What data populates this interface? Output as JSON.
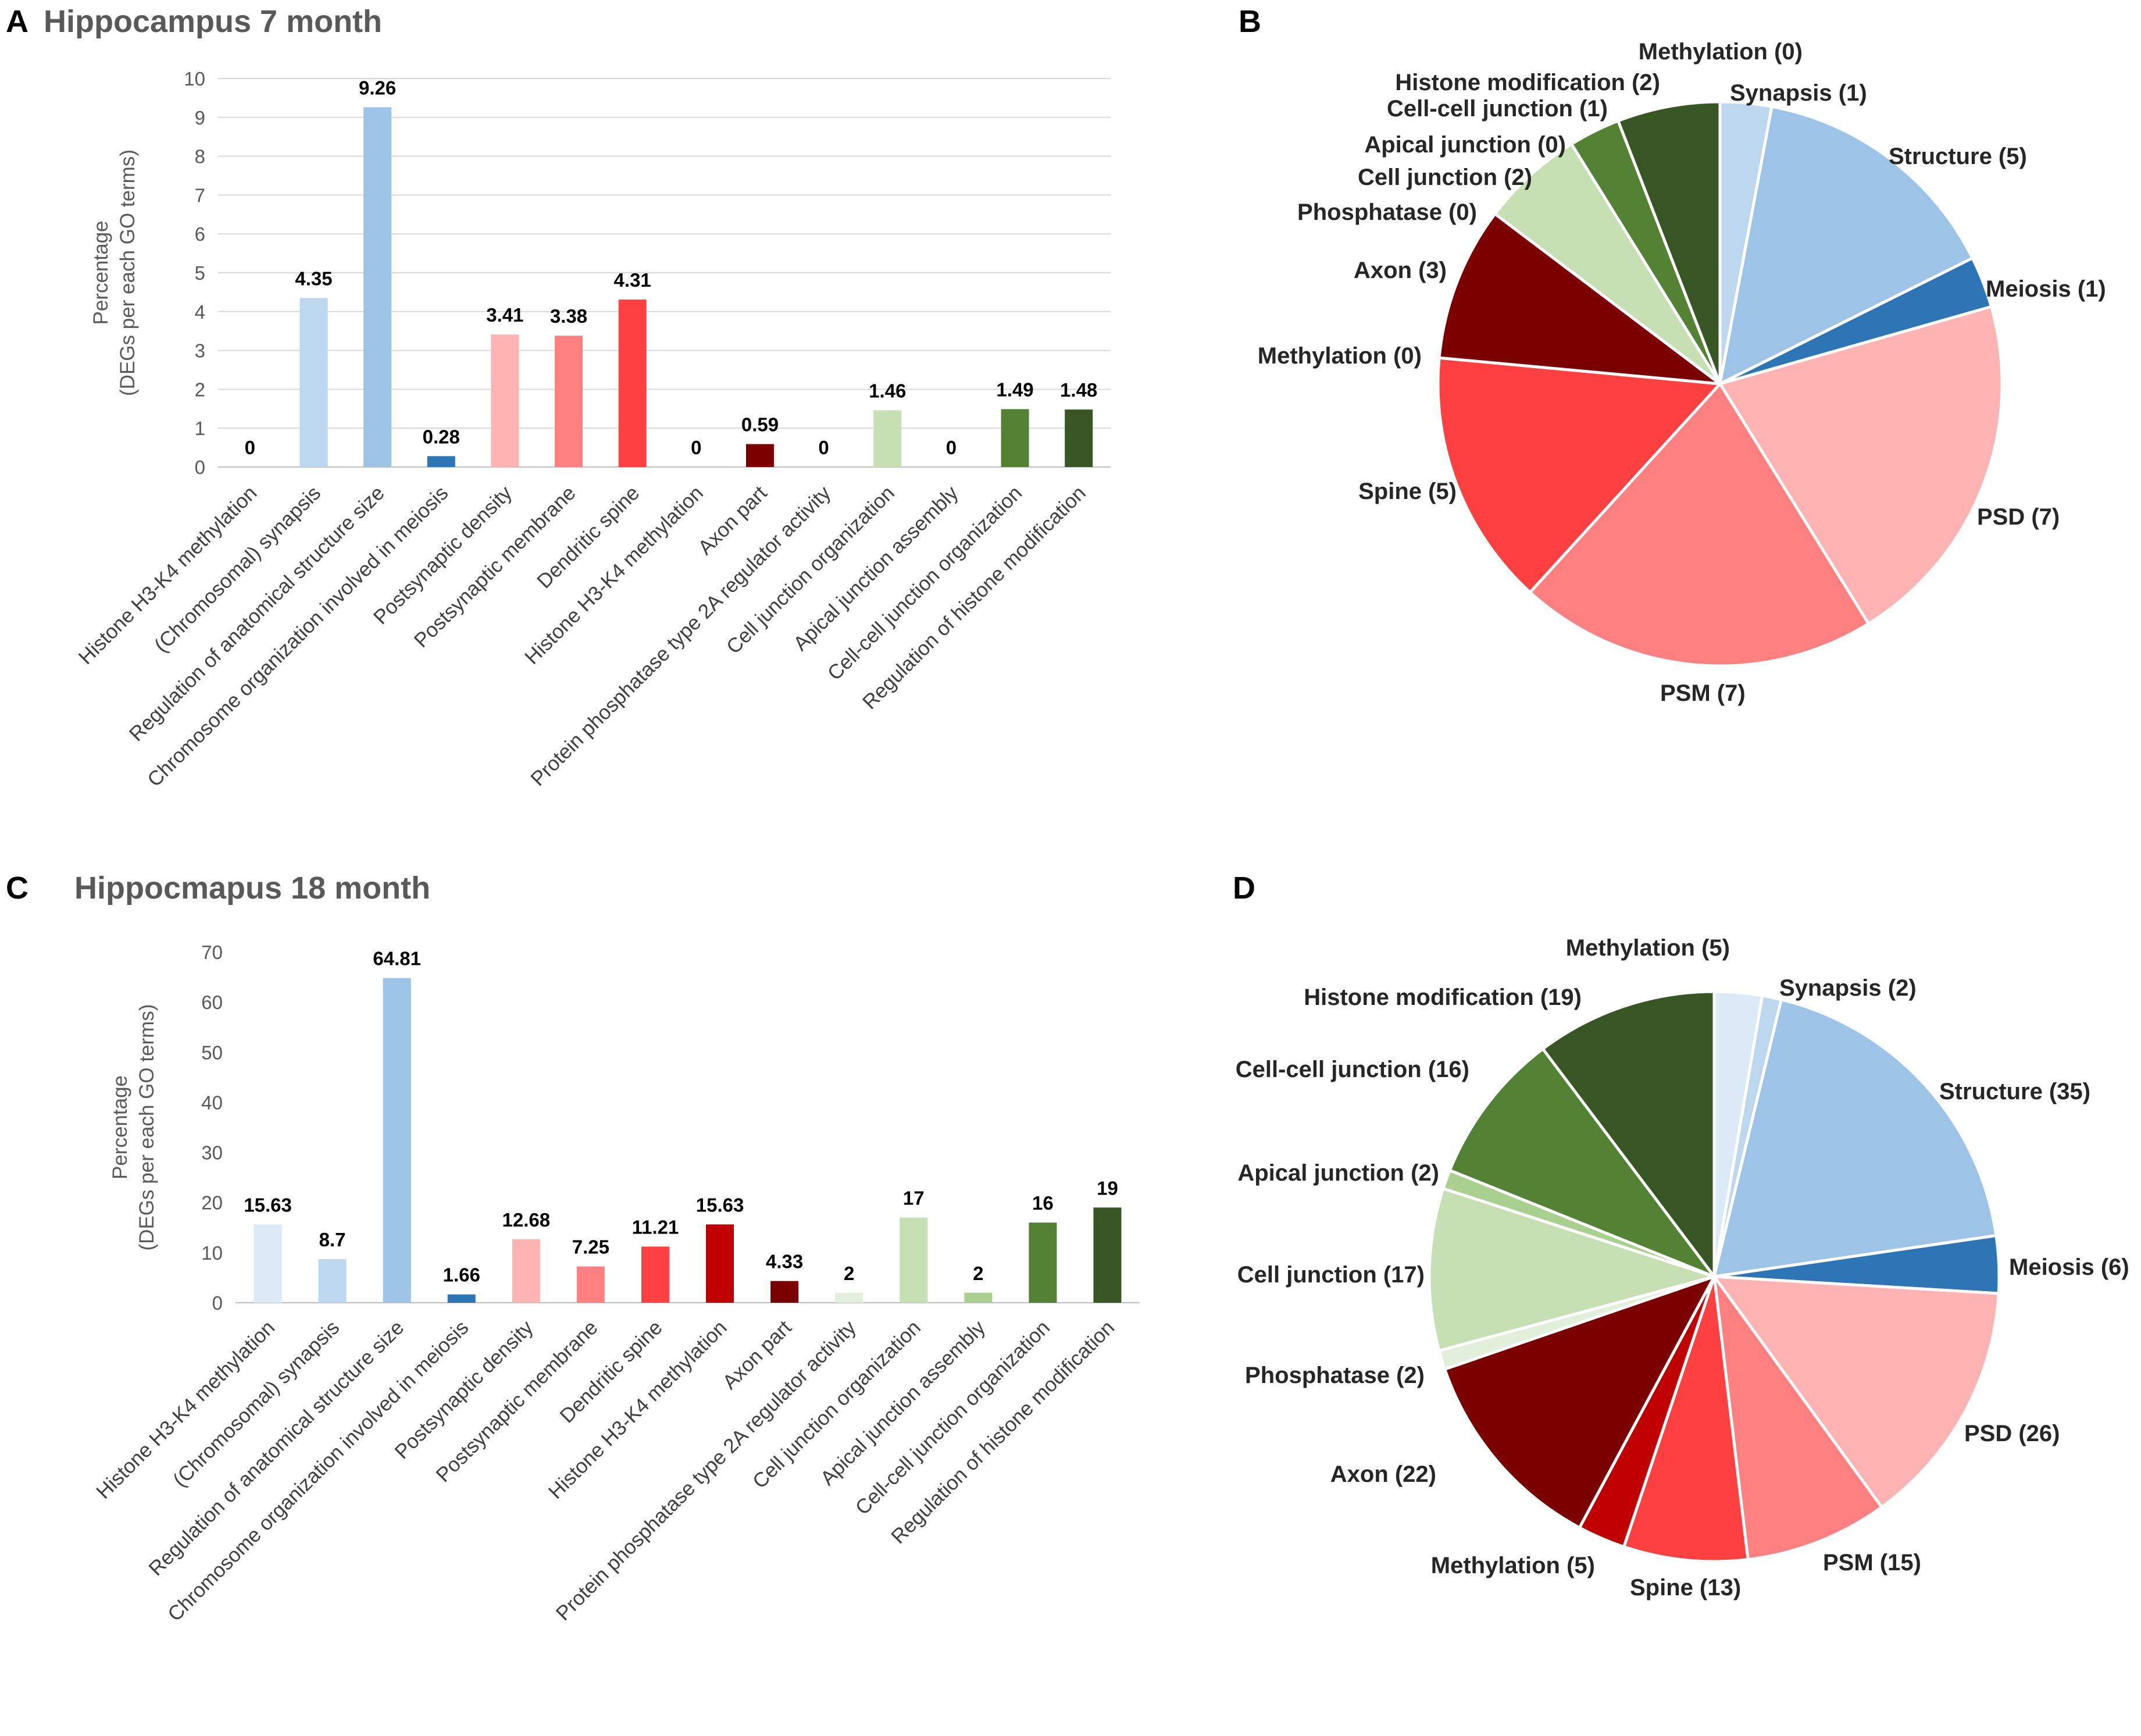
{
  "panels": {
    "a": {
      "letter": "A",
      "title": "Hippocampus 7 month"
    },
    "b": {
      "letter": "B"
    },
    "c": {
      "letter": "C",
      "title": "Hippocmapus 18 month"
    },
    "d": {
      "letter": "D"
    }
  },
  "chart_data": [
    {
      "id": "A",
      "type": "bar",
      "title": "Hippocampus 7 month",
      "xlabel": "",
      "ylabel": [
        "Percentage",
        "(DEGs per each GO terms)"
      ],
      "ylim": [
        0,
        10
      ],
      "yticks": [
        0,
        1,
        2,
        3,
        4,
        5,
        6,
        7,
        8,
        9,
        10
      ],
      "grid": true,
      "categories": [
        "Histone H3-K4 methylation",
        "(Chromosomal) synapsis",
        "Regulation of anatomical structure size",
        "Chromosome organization involved in meiosis",
        "Postsynaptic density",
        "Postsynaptic membrane",
        "Dendritic spine",
        "Histone H3-K4 methylation",
        "Axon part",
        "Protein phosphatase type 2A regulator activity",
        "Cell junction organization",
        "Apical junction assembly",
        "Cell-cell junction organization",
        "Regulation of histone modification"
      ],
      "values": [
        0,
        4.35,
        9.26,
        0.28,
        3.41,
        3.38,
        4.31,
        0,
        0.59,
        0,
        1.46,
        0,
        1.49,
        1.48
      ],
      "labels": [
        "0",
        "4.35",
        "9.26",
        "0.28",
        "3.41",
        "3.38",
        "4.31",
        "0",
        "0.59",
        "0",
        "1.46",
        "0",
        "1.49",
        "1.48"
      ],
      "colors": [
        "#dce9f6",
        "#bdd7ee",
        "#9dc3e6",
        "#2e75b6",
        "#ffb3b3",
        "#ff8080",
        "#ff4040",
        "#c00000",
        "#7b0000",
        "#e2efda",
        "#c6e0b4",
        "#a9d08e",
        "#548235",
        "#375623"
      ]
    },
    {
      "id": "B",
      "type": "pie",
      "slices": [
        {
          "label": "Synapsis (1)",
          "value": 1,
          "color": "#bdd7ee"
        },
        {
          "label": "Structure (5)",
          "value": 5,
          "color": "#9dc3e6"
        },
        {
          "label": "Meiosis (1)",
          "value": 1,
          "color": "#2e75b6"
        },
        {
          "label": "PSD (7)",
          "value": 7,
          "color": "#ffb3b3"
        },
        {
          "label": "PSM (7)",
          "value": 7,
          "color": "#ff8080"
        },
        {
          "label": "Spine (5)",
          "value": 5,
          "color": "#ff4040"
        },
        {
          "label": "Methylation (0)",
          "value": 0,
          "color": "#c00000"
        },
        {
          "label": "Axon (3)",
          "value": 3,
          "color": "#7b0000"
        },
        {
          "label": "Phosphatase (0)",
          "value": 0,
          "color": "#e2efda"
        },
        {
          "label": "Cell junction (2)",
          "value": 2,
          "color": "#c6e0b4"
        },
        {
          "label": "Apical junction (0)",
          "value": 0,
          "color": "#a9d08e"
        },
        {
          "label": "Cell-cell junction (1)",
          "value": 1,
          "color": "#548235"
        },
        {
          "label": "Histone modification (2)",
          "value": 2,
          "color": "#375623"
        },
        {
          "label": "Methylation (0)",
          "value": 0,
          "color": "#dce9f6"
        }
      ]
    },
    {
      "id": "C",
      "type": "bar",
      "title": "Hippocmapus 18 month",
      "xlabel": "",
      "ylabel": [
        "Percentage",
        "(DEGs per each GO terms)"
      ],
      "ylim": [
        0,
        70
      ],
      "yticks": [
        0,
        10,
        20,
        30,
        40,
        50,
        60,
        70
      ],
      "grid": false,
      "categories": [
        "Histone H3-K4 methylation",
        "(Chromosomal) synapsis",
        "Regulation of anatomical structure size",
        "Chromosome organization involved in meiosis",
        "Postsynaptic density",
        "Postsynaptic membrane",
        "Dendritic spine",
        "Histone H3-K4 methylation",
        "Axon part",
        "Protein phosphatase type 2A regulator activity",
        "Cell junction organization",
        "Apical junction assembly",
        "Cell-cell junction organization",
        "Regulation of histone modification"
      ],
      "values": [
        15.63,
        8.7,
        64.81,
        1.66,
        12.68,
        7.25,
        11.21,
        15.63,
        4.33,
        2,
        17,
        2,
        16,
        19
      ],
      "labels": [
        "15.63",
        "8.7",
        "64.81",
        "1.66",
        "12.68",
        "7.25",
        "11.21",
        "15.63",
        "4.33",
        "2",
        "17",
        "2",
        "16",
        "19"
      ],
      "colors": [
        "#dce9f6",
        "#bdd7ee",
        "#9dc3e6",
        "#2e75b6",
        "#ffb3b3",
        "#ff8080",
        "#ff4040",
        "#c00000",
        "#7b0000",
        "#e2efda",
        "#c6e0b4",
        "#a9d08e",
        "#548235",
        "#375623"
      ]
    },
    {
      "id": "D",
      "type": "pie",
      "slices": [
        {
          "label": "Methylation (5)",
          "value": 5,
          "color": "#dce9f6"
        },
        {
          "label": "Synapsis (2)",
          "value": 2,
          "color": "#bdd7ee"
        },
        {
          "label": "Structure (35)",
          "value": 35,
          "color": "#9dc3e6"
        },
        {
          "label": "Meiosis (6)",
          "value": 6,
          "color": "#2e75b6"
        },
        {
          "label": "PSD (26)",
          "value": 26,
          "color": "#ffb3b3"
        },
        {
          "label": "PSM (15)",
          "value": 15,
          "color": "#ff8080"
        },
        {
          "label": "Spine (13)",
          "value": 13,
          "color": "#ff4040"
        },
        {
          "label": "Methylation (5)",
          "value": 5,
          "color": "#c00000"
        },
        {
          "label": "Axon (22)",
          "value": 22,
          "color": "#7b0000"
        },
        {
          "label": "Phosphatase (2)",
          "value": 2,
          "color": "#e2efda"
        },
        {
          "label": "Cell junction (17)",
          "value": 17,
          "color": "#c6e0b4"
        },
        {
          "label": "Apical junction (2)",
          "value": 2,
          "color": "#a9d08e"
        },
        {
          "label": "Cell-cell junction (16)",
          "value": 16,
          "color": "#548235"
        },
        {
          "label": "Histone modification (19)",
          "value": 19,
          "color": "#375623"
        }
      ]
    }
  ]
}
